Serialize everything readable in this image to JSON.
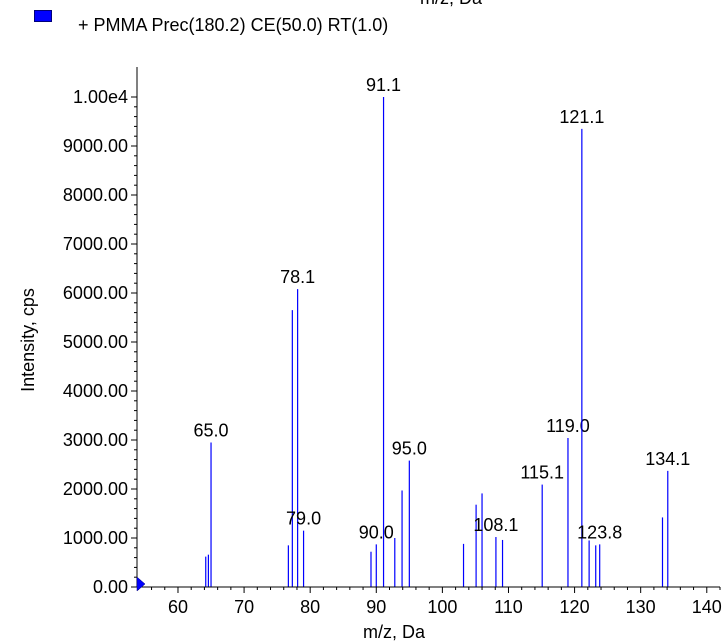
{
  "legend": {
    "label": "+ PMMA Prec(180.2) CE(50.0) RT(1.0)",
    "color": "#0000ff"
  },
  "top_xlabel": "m/z, Da",
  "chart_data": {
    "type": "bar",
    "title": "",
    "xlabel": "m/z, Da",
    "ylabel": "Intensity, cps",
    "xlim": [
      53.8,
      142
    ],
    "ylim": [
      0,
      10000
    ],
    "x_ticks": [
      "60",
      "70",
      "80",
      "90",
      "100",
      "110",
      "120",
      "130",
      "140"
    ],
    "y_ticks": [
      "0.00",
      "1000.00",
      "2000.00",
      "3000.00",
      "4000.00",
      "5000.00",
      "6000.00",
      "7000.00",
      "8000.00",
      "9000.00",
      "1.00e4"
    ],
    "bar_color": "#0000ff",
    "peaks": [
      {
        "mz": 64.2,
        "intensity": 620
      },
      {
        "mz": 64.6,
        "intensity": 660
      },
      {
        "mz": 65.0,
        "intensity": 2950,
        "label": "65.0"
      },
      {
        "mz": 76.7,
        "intensity": 850
      },
      {
        "mz": 77.3,
        "intensity": 5650
      },
      {
        "mz": 78.1,
        "intensity": 6080,
        "label": "78.1"
      },
      {
        "mz": 79.0,
        "intensity": 1150,
        "label": "79.0"
      },
      {
        "mz": 89.2,
        "intensity": 720
      },
      {
        "mz": 90.0,
        "intensity": 870,
        "label": "90.0"
      },
      {
        "mz": 91.1,
        "intensity": 10000,
        "label": "91.1"
      },
      {
        "mz": 92.8,
        "intensity": 1000
      },
      {
        "mz": 93.9,
        "intensity": 1970
      },
      {
        "mz": 95.0,
        "intensity": 2580,
        "label": "95.0"
      },
      {
        "mz": 103.2,
        "intensity": 880
      },
      {
        "mz": 105.1,
        "intensity": 1680
      },
      {
        "mz": 106.0,
        "intensity": 1910
      },
      {
        "mz": 108.1,
        "intensity": 1020,
        "label": "108.1"
      },
      {
        "mz": 109.1,
        "intensity": 960
      },
      {
        "mz": 115.1,
        "intensity": 2090,
        "label": "115.1"
      },
      {
        "mz": 119.0,
        "intensity": 3040,
        "label": "119.0"
      },
      {
        "mz": 121.1,
        "intensity": 9350,
        "label": "121.1"
      },
      {
        "mz": 122.2,
        "intensity": 950
      },
      {
        "mz": 123.2,
        "intensity": 850
      },
      {
        "mz": 123.8,
        "intensity": 870,
        "label": "123.8"
      },
      {
        "mz": 133.3,
        "intensity": 1420
      },
      {
        "mz": 134.1,
        "intensity": 2370,
        "label": "134.1"
      }
    ]
  }
}
